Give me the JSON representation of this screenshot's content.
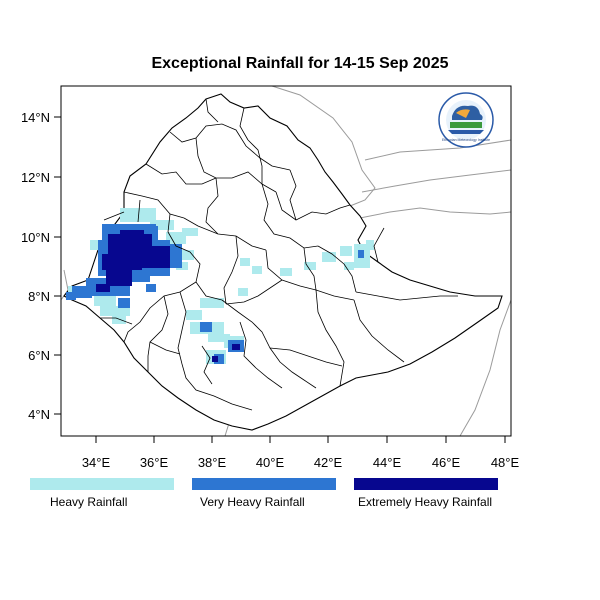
{
  "title": "Exceptional Rainfall for 14-15 Sep 2025",
  "axes": {
    "x_ticks": [
      "34°E",
      "36°E",
      "38°E",
      "40°E",
      "42°E",
      "44°E",
      "46°E",
      "48°E"
    ],
    "y_ticks": [
      "14°N",
      "12°N",
      "10°N",
      "8°N",
      "6°N",
      "4°N"
    ]
  },
  "legend": {
    "items": [
      {
        "label": "Heavy Rainfall",
        "color": "#aeeaed"
      },
      {
        "label": "Very Heavy Rainfall",
        "color": "#2d76d2"
      },
      {
        "label": "Extremely Heavy Rainfall",
        "color": "#07078f"
      }
    ]
  },
  "logo": {
    "text": "Ethiopian Meteorology Institute"
  },
  "colors": {
    "country_outline": "#000000",
    "neighbor_outline": "#9b9b9b",
    "background": "#ffffff"
  }
}
